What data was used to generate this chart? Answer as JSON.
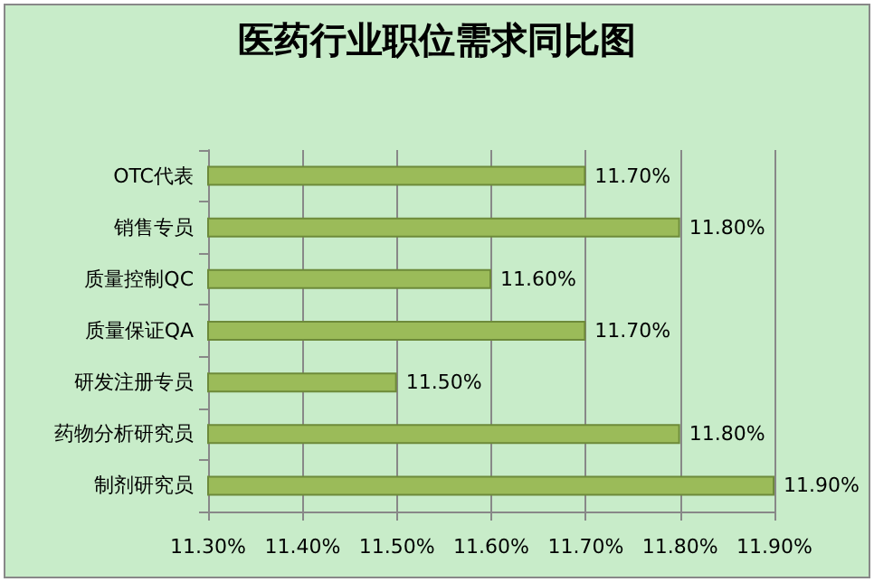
{
  "chart_data": {
    "type": "bar",
    "orientation": "horizontal",
    "title": "医药行业职位需求同比图",
    "categories": [
      "OTC代表",
      "销售专员",
      "质量控制QC",
      "质量保证QA",
      "研发注册专员",
      "药物分析研究员",
      "制剂研究员"
    ],
    "values": [
      11.7,
      11.8,
      11.6,
      11.7,
      11.5,
      11.8,
      11.9
    ],
    "value_labels": [
      "11.70%",
      "11.80%",
      "11.60%",
      "11.70%",
      "11.50%",
      "11.80%",
      "11.90%"
    ],
    "color": "#9bbb59",
    "xlim": [
      11.3,
      11.9
    ],
    "xticks": [
      {
        "value": 11.3,
        "label": "11.30%"
      },
      {
        "value": 11.4,
        "label": "11.40%"
      },
      {
        "value": 11.5,
        "label": "11.50%"
      },
      {
        "value": 11.6,
        "label": "11.60%"
      },
      {
        "value": 11.7,
        "label": "11.70%"
      },
      {
        "value": 11.8,
        "label": "11.80%"
      },
      {
        "value": 11.9,
        "label": "11.90%"
      }
    ],
    "grid": "x"
  }
}
